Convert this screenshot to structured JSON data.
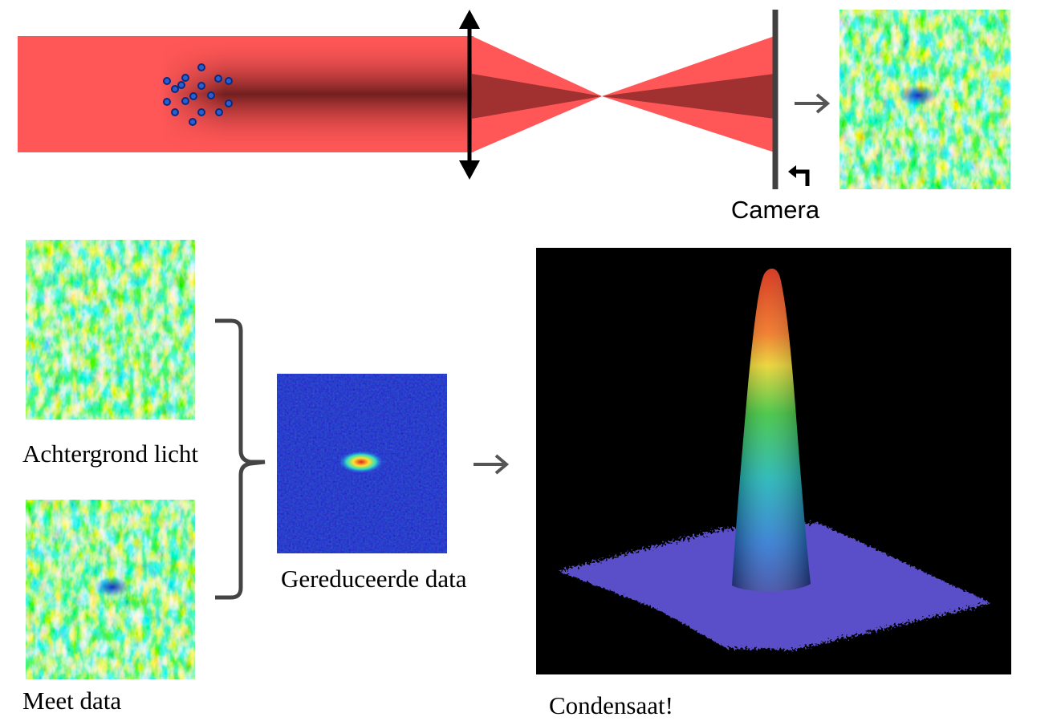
{
  "labels": {
    "camera": "Camera",
    "background": "Achtergrond licht",
    "measurement": "Meet data",
    "reduced": "Gereduceerde data",
    "condensate": "Condensaat!"
  }
}
